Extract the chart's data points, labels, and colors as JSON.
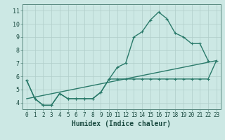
{
  "xlabel": "Humidex (Indice chaleur)",
  "bg_color": "#cce8e4",
  "grid_color": "#b0cdc9",
  "line_color": "#2a7a6a",
  "xlim": [
    -0.5,
    23.5
  ],
  "ylim": [
    3.5,
    11.5
  ],
  "xticks": [
    0,
    1,
    2,
    3,
    4,
    5,
    6,
    7,
    8,
    9,
    10,
    11,
    12,
    13,
    14,
    15,
    16,
    17,
    18,
    19,
    20,
    21,
    22,
    23
  ],
  "yticks": [
    4,
    5,
    6,
    7,
    8,
    9,
    10,
    11
  ],
  "line1_x": [
    0,
    1,
    2,
    3,
    4,
    5,
    6,
    7,
    8,
    9,
    10,
    11,
    12,
    13,
    14,
    15,
    16,
    17,
    18,
    19,
    20,
    21,
    22
  ],
  "line1_y": [
    5.7,
    4.3,
    3.8,
    3.8,
    4.7,
    4.3,
    4.3,
    4.3,
    4.3,
    4.8,
    5.8,
    6.7,
    7.0,
    9.0,
    9.4,
    10.3,
    10.9,
    10.4,
    9.3,
    9.0,
    8.5,
    8.5,
    7.2
  ],
  "line2_x": [
    0,
    1,
    2,
    3,
    4,
    5,
    6,
    7,
    8,
    9,
    10,
    11,
    12,
    13,
    14,
    15,
    16,
    17,
    18,
    19,
    20,
    21,
    22,
    23
  ],
  "line2_y": [
    5.7,
    4.3,
    3.8,
    3.8,
    4.7,
    4.3,
    4.3,
    4.3,
    4.3,
    4.8,
    5.8,
    5.8,
    5.8,
    5.8,
    5.8,
    5.8,
    5.8,
    5.8,
    5.8,
    5.8,
    5.8,
    5.8,
    5.8,
    7.2
  ],
  "line3_x": [
    0,
    23
  ],
  "line3_y": [
    4.3,
    7.2
  ],
  "linewidth": 1.0,
  "marker": "+",
  "marker_size": 3,
  "marker_lw": 0.8,
  "xlabel_fontsize": 7,
  "tick_fontsize": 5.5
}
